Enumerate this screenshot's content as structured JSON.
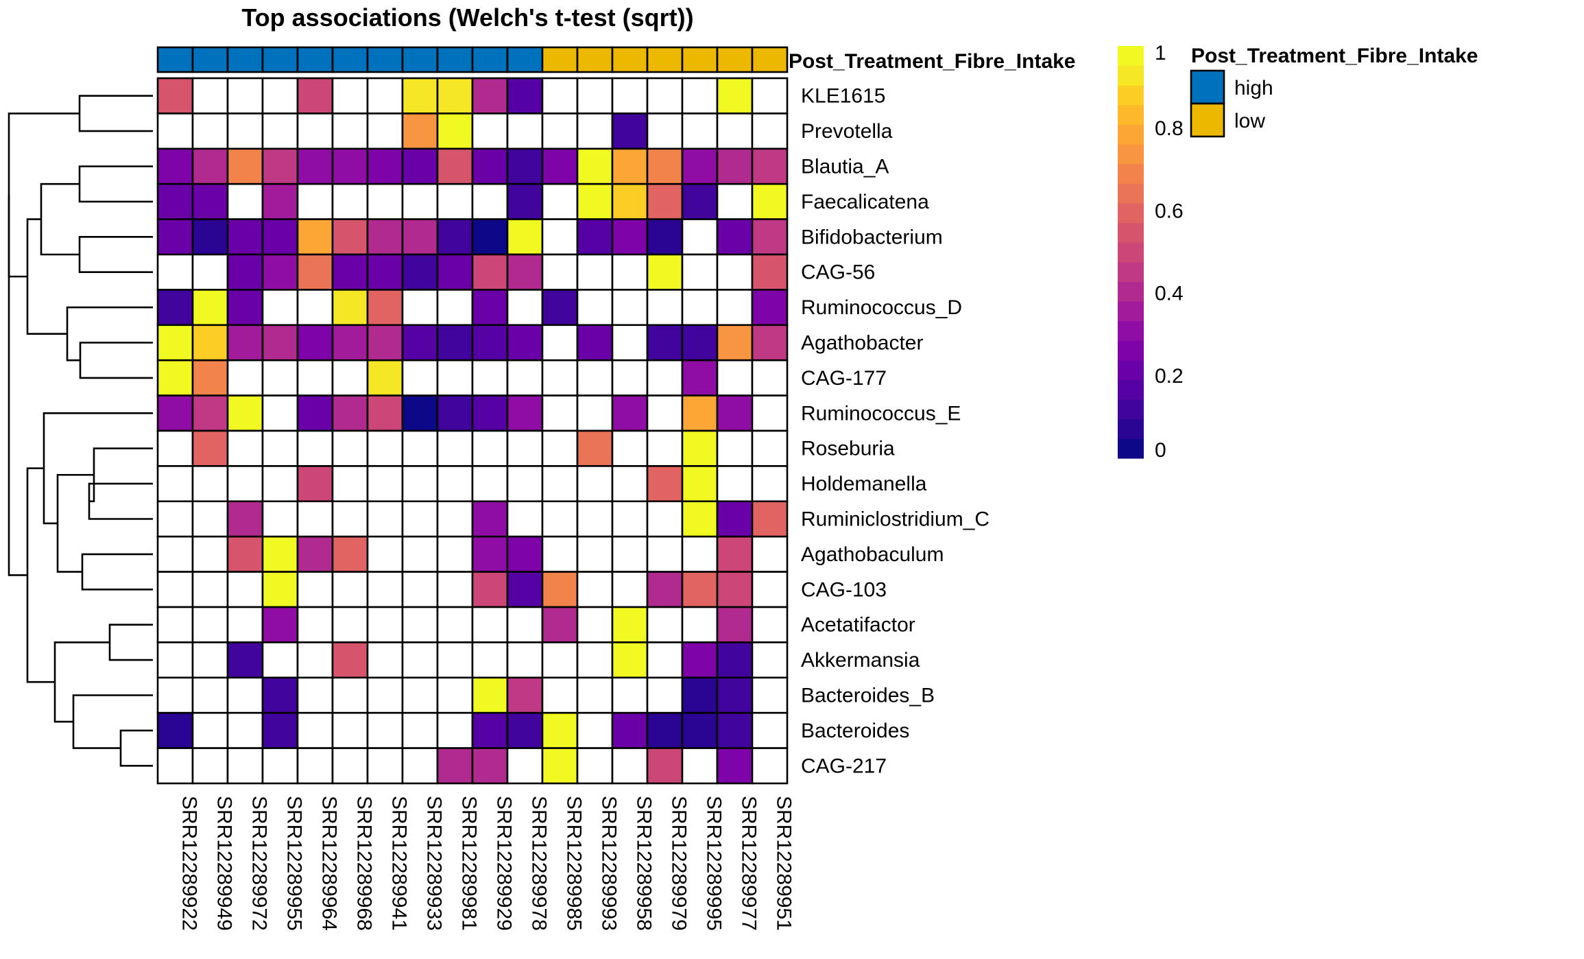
{
  "chart_data": {
    "type": "heatmap",
    "title": "Top associations (Welch's t-test (sqrt))",
    "rows": [
      "KLE1615",
      "Prevotella",
      "Blautia_A",
      "Faecalicatena",
      "Bifidobacterium",
      "CAG-56",
      "Ruminococcus_D",
      "Agathobacter",
      "CAG-177",
      "Ruminococcus_E",
      "Roseburia",
      "Holdemanella",
      "Ruminiclostridium_C",
      "Agathobaculum",
      "CAG-103",
      "Acetatifactor",
      "Akkermansia",
      "Bacteroides_B",
      "Bacteroides",
      "CAG-217"
    ],
    "columns": [
      "SRR12289922",
      "SRR12289949",
      "SRR12289972",
      "SRR12289955",
      "SRR12289964",
      "SRR12289968",
      "SRR12289941",
      "SRR12289933",
      "SRR12289981",
      "SRR12289929",
      "SRR12289978",
      "SRR12289985",
      "SRR12289993",
      "SRR12289958",
      "SRR12289979",
      "SRR12289995",
      "SRR12289977",
      "SRR12289951"
    ],
    "values": [
      [
        0.55,
        null,
        null,
        null,
        0.52,
        null,
        null,
        0.97,
        0.93,
        0.42,
        0.15,
        null,
        null,
        null,
        null,
        null,
        0.98,
        null
      ],
      [
        null,
        null,
        null,
        null,
        null,
        null,
        null,
        0.77,
        0.98,
        null,
        null,
        null,
        null,
        0.1,
        null,
        null,
        null,
        null
      ],
      [
        0.25,
        0.42,
        0.72,
        0.45,
        0.32,
        0.3,
        0.25,
        0.2,
        0.55,
        0.2,
        0.08,
        0.25,
        0.98,
        0.78,
        0.7,
        0.32,
        0.38,
        0.45
      ],
      [
        0.22,
        0.22,
        null,
        0.35,
        null,
        null,
        null,
        null,
        null,
        null,
        0.12,
        null,
        0.98,
        0.92,
        0.6,
        0.08,
        null,
        0.98
      ],
      [
        0.2,
        0.05,
        0.18,
        0.22,
        0.8,
        0.55,
        0.4,
        0.38,
        0.12,
        0.02,
        0.98,
        null,
        0.15,
        0.25,
        0.05,
        null,
        0.2,
        0.45
      ],
      [
        null,
        null,
        0.18,
        0.28,
        0.65,
        0.18,
        0.22,
        0.12,
        0.2,
        0.52,
        0.38,
        null,
        null,
        null,
        0.98,
        null,
        null,
        0.55
      ],
      [
        0.1,
        0.98,
        0.22,
        null,
        null,
        0.96,
        0.6,
        null,
        null,
        0.22,
        null,
        0.1,
        null,
        null,
        null,
        null,
        null,
        0.25
      ],
      [
        0.98,
        0.9,
        0.35,
        0.42,
        0.25,
        0.35,
        0.42,
        0.15,
        0.12,
        0.15,
        0.2,
        null,
        0.22,
        null,
        0.12,
        0.1,
        0.75,
        0.45
      ],
      [
        0.98,
        0.68,
        null,
        null,
        null,
        null,
        0.95,
        null,
        null,
        null,
        null,
        null,
        null,
        null,
        null,
        0.3,
        null,
        null
      ],
      [
        0.32,
        0.45,
        0.98,
        null,
        0.22,
        0.38,
        0.48,
        0.02,
        0.1,
        0.15,
        0.32,
        null,
        null,
        0.28,
        null,
        0.82,
        0.28,
        null
      ],
      [
        null,
        0.58,
        null,
        null,
        null,
        null,
        null,
        null,
        null,
        null,
        null,
        null,
        0.65,
        null,
        null,
        0.98,
        null,
        null
      ],
      [
        null,
        null,
        null,
        null,
        0.48,
        null,
        null,
        null,
        null,
        null,
        null,
        null,
        null,
        null,
        0.6,
        0.98,
        null,
        null
      ],
      [
        null,
        null,
        0.42,
        null,
        null,
        null,
        null,
        null,
        null,
        0.32,
        null,
        null,
        null,
        null,
        null,
        0.98,
        0.18,
        0.6
      ],
      [
        null,
        null,
        0.55,
        0.98,
        0.42,
        0.6,
        null,
        null,
        null,
        0.28,
        0.25,
        null,
        null,
        null,
        null,
        null,
        0.48,
        null
      ],
      [
        null,
        null,
        null,
        0.98,
        null,
        null,
        null,
        null,
        null,
        0.5,
        0.15,
        0.68,
        null,
        null,
        0.38,
        0.58,
        0.52,
        null
      ],
      [
        null,
        null,
        null,
        0.3,
        null,
        null,
        null,
        null,
        null,
        null,
        null,
        0.38,
        null,
        0.98,
        null,
        null,
        0.38,
        null
      ],
      [
        null,
        null,
        0.1,
        null,
        null,
        0.55,
        null,
        null,
        null,
        null,
        null,
        null,
        null,
        0.98,
        null,
        0.25,
        0.12,
        null
      ],
      [
        null,
        null,
        null,
        0.1,
        null,
        null,
        null,
        null,
        null,
        0.98,
        0.45,
        null,
        null,
        null,
        null,
        0.03,
        0.08,
        null
      ],
      [
        0.03,
        null,
        null,
        0.08,
        null,
        null,
        null,
        null,
        null,
        0.15,
        0.12,
        0.98,
        null,
        0.2,
        0.05,
        0.03,
        0.08,
        null
      ],
      [
        null,
        null,
        null,
        null,
        null,
        null,
        null,
        null,
        0.38,
        0.38,
        null,
        0.98,
        null,
        null,
        0.48,
        null,
        0.25,
        null
      ]
    ],
    "annotation": {
      "name": "Post_Treatment_Fibre_Intake",
      "values": [
        "high",
        "high",
        "high",
        "high",
        "high",
        "high",
        "high",
        "high",
        "high",
        "high",
        "high",
        "low",
        "low",
        "low",
        "low",
        "low",
        "low",
        "low"
      ],
      "legend": [
        {
          "label": "high",
          "color": "#0072BD"
        },
        {
          "label": "low",
          "color": "#EDB800"
        }
      ]
    },
    "colorbar": {
      "range": [
        0,
        1
      ],
      "ticks": [
        "0",
        "0.2",
        "0.4",
        "0.6",
        "0.8",
        "1"
      ],
      "colors": [
        "#0D0887",
        "#2A0593",
        "#41049D",
        "#5601A4",
        "#6A00A8",
        "#7E03A8",
        "#8F0DA4",
        "#A11B9B",
        "#B12A90",
        "#BF3984",
        "#CC4778",
        "#D6556D",
        "#E16462",
        "#EA7457",
        "#F2844B",
        "#F89540",
        "#FCA636",
        "#FEB82C",
        "#FCCE25",
        "#F5E626",
        "#F0F921"
      ]
    },
    "legend_placement": "right"
  }
}
